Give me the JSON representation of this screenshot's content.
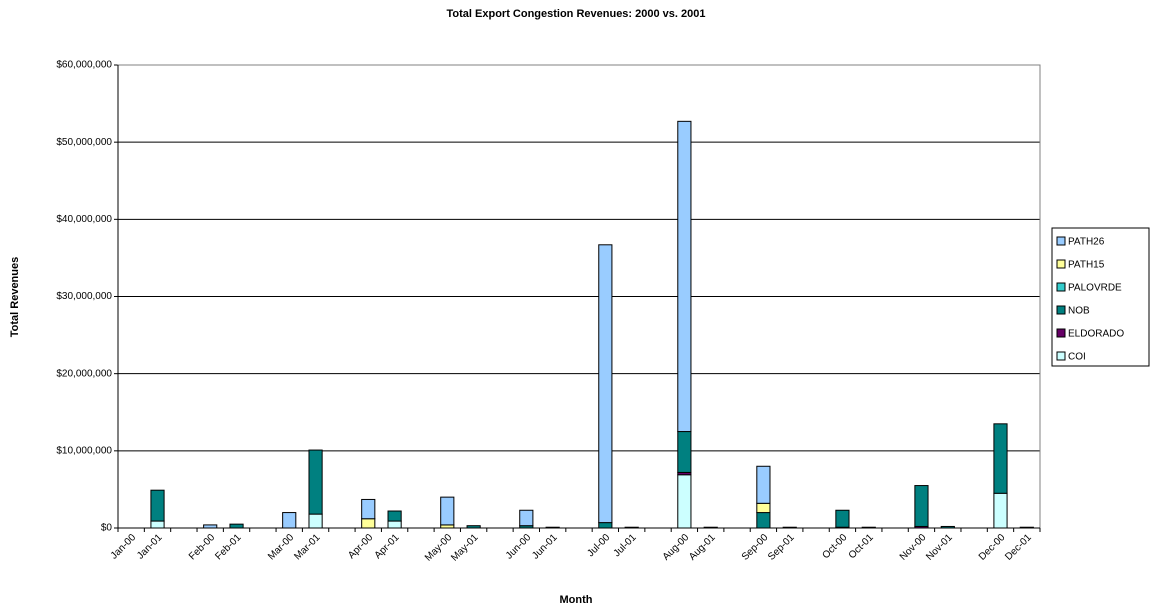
{
  "chart_data": {
    "type": "stacked-bar",
    "title": "Total Export Congestion Revenues:  2000 vs. 2001",
    "x_label": "Month",
    "y_label": "Total Revenues",
    "categories": [
      "Jan-00",
      "Jan-01",
      null,
      "Feb-00",
      "Feb-01",
      null,
      "Mar-00",
      "Mar-01",
      null,
      "Apr-00",
      "Apr-01",
      null,
      "May-00",
      "May-01",
      null,
      "Jun-00",
      "Jun-01",
      null,
      "Jul-00",
      "Jul-01",
      null,
      "Aug-00",
      "Aug-01",
      null,
      "Sep-00",
      "Sep-01",
      null,
      "Oct-00",
      "Oct-01",
      null,
      "Nov-00",
      "Nov-01",
      null,
      "Dec-00",
      "Dec-01"
    ],
    "series": [
      {
        "name": "COI",
        "color": "#ccffff",
        "values": [
          0,
          900000,
          null,
          0,
          0,
          null,
          0,
          1800000,
          null,
          0,
          900000,
          null,
          0,
          0,
          null,
          0,
          0,
          null,
          0,
          0,
          null,
          6900000,
          0,
          null,
          0,
          0,
          null,
          0,
          0,
          null,
          0,
          0,
          null,
          4500000,
          0
        ]
      },
      {
        "name": "ELDORADO",
        "color": "#660066",
        "values": [
          0,
          0,
          null,
          0,
          0,
          null,
          0,
          0,
          null,
          0,
          0,
          null,
          0,
          0,
          null,
          0,
          0,
          null,
          0,
          0,
          null,
          300000,
          0,
          null,
          0,
          0,
          null,
          100000,
          0,
          null,
          200000,
          0,
          null,
          0,
          0
        ]
      },
      {
        "name": "NOB",
        "color": "#008080",
        "values": [
          0,
          4000000,
          null,
          0,
          500000,
          null,
          0,
          8300000,
          null,
          0,
          1300000,
          null,
          0,
          300000,
          null,
          300000,
          100000,
          null,
          700000,
          100000,
          null,
          5300000,
          100000,
          null,
          2000000,
          100000,
          null,
          2200000,
          100000,
          null,
          5300000,
          200000,
          null,
          9000000,
          100000
        ]
      },
      {
        "name": "PALOVRDE",
        "color": "#33cccc",
        "values": [
          0,
          0,
          null,
          0,
          0,
          null,
          0,
          0,
          null,
          0,
          0,
          null,
          0,
          0,
          null,
          0,
          0,
          null,
          0,
          0,
          null,
          0,
          0,
          null,
          0,
          0,
          null,
          0,
          0,
          null,
          0,
          0,
          null,
          0,
          0
        ]
      },
      {
        "name": "PATH15",
        "color": "#ffff99",
        "values": [
          0,
          0,
          null,
          0,
          0,
          null,
          0,
          0,
          null,
          1200000,
          0,
          null,
          400000,
          0,
          null,
          0,
          0,
          null,
          0,
          0,
          null,
          0,
          0,
          null,
          1200000,
          0,
          null,
          0,
          0,
          null,
          0,
          0,
          null,
          0,
          0
        ]
      },
      {
        "name": "PATH26",
        "color": "#99ccff",
        "values": [
          0,
          0,
          null,
          400000,
          0,
          null,
          2000000,
          0,
          null,
          2500000,
          0,
          null,
          3600000,
          0,
          null,
          2000000,
          0,
          null,
          36000000,
          0,
          null,
          40200000,
          0,
          null,
          4800000,
          0,
          null,
          0,
          0,
          null,
          0,
          0,
          null,
          0,
          0
        ]
      }
    ],
    "ylim": [
      0,
      60000000
    ],
    "yticks": [
      {
        "value": 0,
        "label": "$0"
      },
      {
        "value": 10000000,
        "label": "$10,000,000"
      },
      {
        "value": 20000000,
        "label": "$20,000,000"
      },
      {
        "value": 30000000,
        "label": "$30,000,000"
      },
      {
        "value": 40000000,
        "label": "$40,000,000"
      },
      {
        "value": 50000000,
        "label": "$50,000,000"
      },
      {
        "value": 60000000,
        "label": "$60,000,000"
      }
    ],
    "grid": true,
    "legend": "right"
  }
}
